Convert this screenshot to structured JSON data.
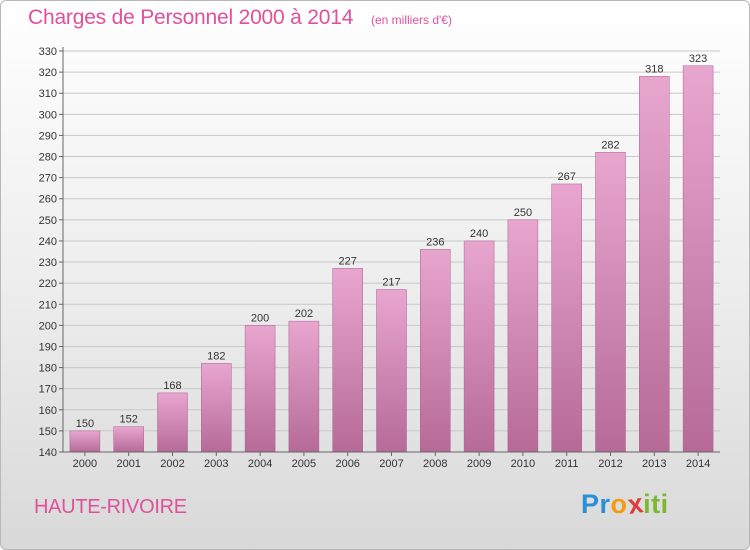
{
  "title": "Charges de Personnel 2000 à 2014",
  "subtitle": "(en milliers d'€)",
  "commune": "HAUTE-RIVOIRE",
  "logo": {
    "letters": [
      "P",
      "r",
      "o",
      "x",
      "i",
      "t",
      "i"
    ],
    "colors": [
      "#2a8fd6",
      "#2a8fd6",
      "#f39c12",
      "#e03a3a",
      "#7cb82f",
      "#7cb82f",
      "#7cb82f"
    ]
  },
  "colors": {
    "title": "#e0509c",
    "bar_top": "#e8a6cf",
    "bar_bottom": "#b66a98"
  },
  "chart_data": {
    "type": "bar",
    "categories": [
      "2000",
      "2001",
      "2002",
      "2003",
      "2004",
      "2005",
      "2006",
      "2007",
      "2008",
      "2009",
      "2010",
      "2011",
      "2012",
      "2013",
      "2014"
    ],
    "values": [
      150,
      152,
      168,
      182,
      200,
      202,
      227,
      217,
      236,
      240,
      250,
      267,
      282,
      318,
      323
    ],
    "ylim": [
      140,
      330
    ],
    "yticks": [
      140,
      150,
      160,
      170,
      180,
      190,
      200,
      210,
      220,
      230,
      240,
      250,
      260,
      270,
      280,
      290,
      300,
      310,
      320,
      330
    ],
    "grid": true,
    "legend": "none"
  }
}
